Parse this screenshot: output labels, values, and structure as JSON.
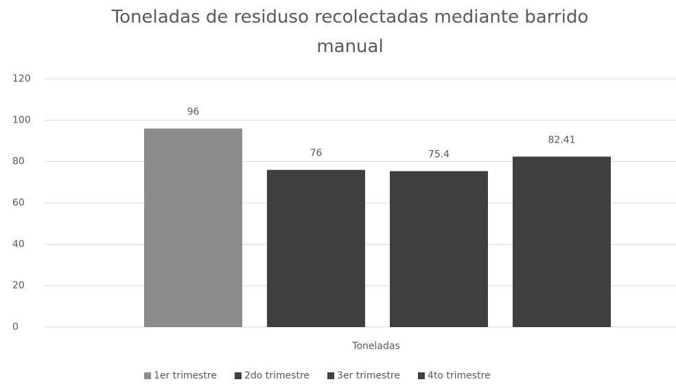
{
  "chart_data": {
    "type": "bar",
    "title": "Toneladas de residuso recolectadas mediante barrido manual",
    "categories": [
      "Toneladas"
    ],
    "series": [
      {
        "name": "1er trimestre",
        "color": "#8c8c8c",
        "values": [
          96
        ]
      },
      {
        "name": "2do trimestre",
        "color": "#3f3f3f",
        "values": [
          76
        ]
      },
      {
        "name": "3er trimestre",
        "color": "#3f3f3f",
        "values": [
          75.4
        ]
      },
      {
        "name": "4to trimestre",
        "color": "#3f3f3f",
        "values": [
          82.41
        ]
      }
    ],
    "ylim": [
      0,
      120
    ],
    "yticks": [
      0,
      20,
      40,
      60,
      80,
      100,
      120
    ],
    "grid": true,
    "legend": "bottom"
  }
}
